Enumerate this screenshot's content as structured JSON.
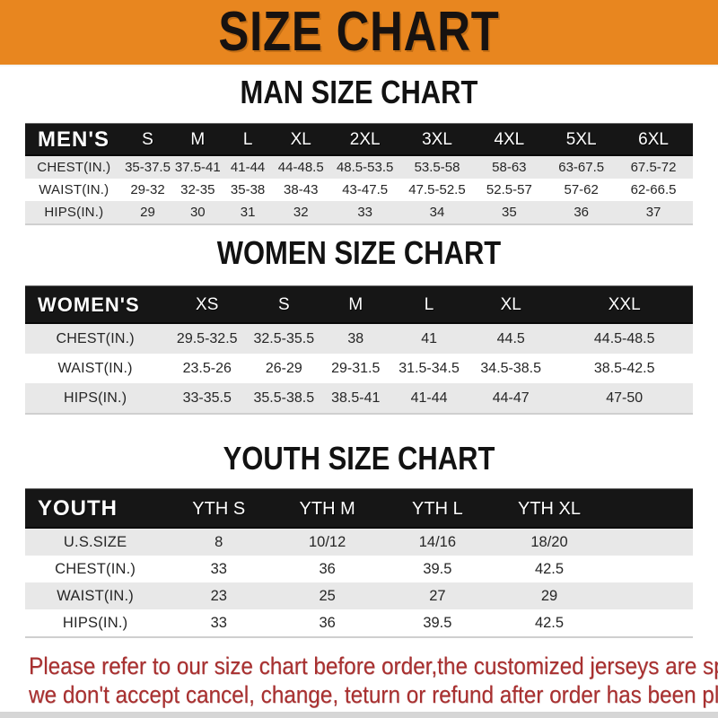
{
  "banner": {
    "title": "SIZE CHART"
  },
  "colors": {
    "banner_bg": "#E8861F",
    "header_bar_bg": "#161616",
    "row_alt_bg": "#E8E8E8",
    "footer_text": "#A93030"
  },
  "sections": {
    "men": {
      "title": "MAN SIZE CHART",
      "header": [
        "MEN'S",
        "S",
        "M",
        "L",
        "XL",
        "2XL",
        "3XL",
        "4XL",
        "5XL",
        "6XL"
      ],
      "rows": [
        {
          "label": "CHEST(IN.)",
          "values": [
            "35-37.5",
            "37.5-41",
            "41-44",
            "44-48.5",
            "48.5-53.5",
            "53.5-58",
            "58-63",
            "63-67.5",
            "67.5-72"
          ]
        },
        {
          "label": "WAIST(IN.)",
          "values": [
            "29-32",
            "32-35",
            "35-38",
            "38-43",
            "43-47.5",
            "47.5-52.5",
            "52.5-57",
            "57-62",
            "62-66.5"
          ]
        },
        {
          "label": "HIPS(IN.)",
          "values": [
            "29",
            "30",
            "31",
            "32",
            "33",
            "34",
            "35",
            "36",
            "37"
          ]
        }
      ]
    },
    "women": {
      "title": "WOMEN SIZE CHART",
      "header": [
        "WOMEN'S",
        "XS",
        "S",
        "M",
        "L",
        "XL",
        "XXL"
      ],
      "rows": [
        {
          "label": "CHEST(IN.)",
          "values": [
            "29.5-32.5",
            "32.5-35.5",
            "38",
            "41",
            "44.5",
            "44.5-48.5"
          ]
        },
        {
          "label": "WAIST(IN.)",
          "values": [
            "23.5-26",
            "26-29",
            "29-31.5",
            "31.5-34.5",
            "34.5-38.5",
            "38.5-42.5"
          ]
        },
        {
          "label": "HIPS(IN.)",
          "values": [
            "33-35.5",
            "35.5-38.5",
            "38.5-41",
            "41-44",
            "44-47",
            "47-50"
          ]
        }
      ]
    },
    "youth": {
      "title": "YOUTH SIZE CHART",
      "header": [
        "YOUTH",
        "YTH S",
        "YTH M",
        "YTH L",
        "YTH XL"
      ],
      "rows": [
        {
          "label": "U.S.SIZE",
          "values": [
            "8",
            "10/12",
            "14/16",
            "18/20"
          ]
        },
        {
          "label": "CHEST(IN.)",
          "values": [
            "33",
            "36",
            "39.5",
            "42.5"
          ]
        },
        {
          "label": "WAIST(IN.)",
          "values": [
            "23",
            "25",
            "27",
            "29"
          ]
        },
        {
          "label": "HIPS(IN.)",
          "values": [
            "33",
            "36",
            "39.5",
            "42.5"
          ]
        }
      ]
    }
  },
  "footer": {
    "line1": "Please refer to our size chart before order,the customized jerseys are special products,",
    "line2": "we don't accept cancel, change, teturn or refund after order has been placed!"
  }
}
